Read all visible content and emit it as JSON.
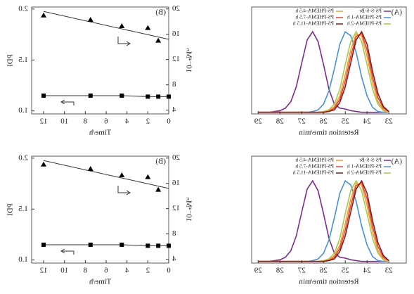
{
  "chart_data": [
    {
      "type": "line",
      "title": "(A)",
      "xlabel": "Retention time/min",
      "xlim": [
        22.2,
        29.3
      ],
      "xticks": [
        23,
        24,
        25,
        26,
        27,
        28,
        29
      ],
      "ylim": [
        0,
        1.3
      ],
      "x": [
        23,
        23.25,
        23.5,
        23.75,
        24,
        24.25,
        24.5,
        24.75,
        25,
        25.25,
        25.5,
        25.75,
        26,
        26.25,
        26.5,
        26.75,
        27,
        27.25,
        27.5,
        27.75,
        28,
        28.25,
        28.5,
        28.75,
        29
      ],
      "series": [
        {
          "name": "PS-S-S-Br",
          "color": "#7b2d8b",
          "values": [
            0.02,
            0.02,
            0.02,
            0.02,
            0.02,
            0.02,
            0.03,
            0.04,
            0.06,
            0.07,
            0.12,
            0.3,
            0.6,
            0.88,
            1.0,
            0.9,
            0.62,
            0.33,
            0.15,
            0.07,
            0.04,
            0.03,
            0.02,
            0.02,
            0.02
          ]
        },
        {
          "name": "PS-PHEMA-1 h",
          "color": "#4a90d9",
          "values": [
            0.02,
            0.02,
            0.03,
            0.08,
            0.22,
            0.45,
            0.75,
            0.95,
            1.0,
            0.85,
            0.55,
            0.28,
            0.12,
            0.05,
            0.03,
            0.02,
            0.02,
            0.02,
            0.02,
            0.02,
            0.02,
            0.02,
            0.02,
            0.02,
            0.02
          ]
        },
        {
          "name": "PS-PHEMA-2 h",
          "color": "#a8c84a",
          "values": [
            0.02,
            0.04,
            0.12,
            0.3,
            0.6,
            0.88,
            1.0,
            0.88,
            0.6,
            0.3,
            0.12,
            0.05,
            0.03,
            0.02,
            0.02,
            0.02,
            0.02,
            0.02,
            0.02,
            0.02,
            0.02,
            0.02,
            0.02,
            0.02,
            0.02
          ]
        },
        {
          "name": "PS-PHEMA-4.5 h",
          "color": "#f39c3c",
          "values": [
            0.02,
            0.05,
            0.15,
            0.38,
            0.7,
            0.95,
            0.97,
            0.78,
            0.48,
            0.22,
            0.09,
            0.04,
            0.02,
            0.02,
            0.02,
            0.02,
            0.02,
            0.02,
            0.02,
            0.02,
            0.02,
            0.02,
            0.02,
            0.02,
            0.02
          ]
        },
        {
          "name": "PS-PHEMA-7.5 h",
          "color": "#d94a3a",
          "values": [
            0.03,
            0.07,
            0.2,
            0.45,
            0.78,
            0.98,
            0.94,
            0.7,
            0.4,
            0.18,
            0.07,
            0.03,
            0.02,
            0.02,
            0.02,
            0.02,
            0.02,
            0.02,
            0.02,
            0.02,
            0.02,
            0.02,
            0.02,
            0.02,
            0.02
          ]
        },
        {
          "name": "PS-PHEMA-11.5 h",
          "color": "#8b1a1a",
          "values": [
            0.03,
            0.09,
            0.25,
            0.52,
            0.85,
            1.0,
            0.9,
            0.62,
            0.33,
            0.14,
            0.05,
            0.03,
            0.02,
            0.02,
            0.02,
            0.02,
            0.02,
            0.02,
            0.02,
            0.02,
            0.02,
            0.02,
            0.02,
            0.02,
            0.02
          ]
        }
      ]
    },
    {
      "type": "dual",
      "title": "(B)",
      "xlabel": "Time/h",
      "ylabel": "10⁻⁴Mₙ",
      "y2label": "PDI",
      "xlim": [
        0,
        13.15
      ],
      "xticks": [
        0,
        2,
        4,
        6,
        8,
        10,
        12
      ],
      "ylim": [
        3.4,
        20.3
      ],
      "yticks": [
        4,
        8,
        12,
        16,
        20
      ],
      "y2lim": [
        0.97,
        2.02
      ],
      "y2ticks": [
        {
          "value": 1,
          "label": "1.0"
        },
        1.5,
        {
          "value": 2,
          "label": "2.0"
        }
      ],
      "series": [
        {
          "marker": "triangle",
          "color": "#000000",
          "x": [
            12,
            7.5,
            4.5,
            2,
            1
          ],
          "values": [
            19,
            18.3,
            17.3,
            17,
            15
          ]
        },
        {
          "marker": "square",
          "axis": "y2",
          "color": "#000000",
          "x": [
            12,
            7.5,
            4.5,
            2,
            1,
            0
          ],
          "values": [
            1.15,
            1.15,
            1.15,
            1.14,
            1.14,
            1.14
          ]
        }
      ],
      "trend_line": {
        "x": [
          0,
          12
        ],
        "values": [
          15.2,
          19.6
        ]
      }
    },
    {
      "type": "line",
      "title": "(A)",
      "xlabel": "Retention time/min",
      "xlim": [
        22.2,
        29.3
      ],
      "xticks": [
        23,
        24,
        25,
        26,
        27,
        28,
        29
      ],
      "ylim": [
        0,
        1.3
      ],
      "x": [
        23,
        23.25,
        23.5,
        23.75,
        24,
        24.25,
        24.5,
        24.75,
        25,
        25.25,
        25.5,
        25.75,
        26,
        26.25,
        26.5,
        26.75,
        27,
        27.25,
        27.5,
        27.75,
        28,
        28.25,
        28.5,
        28.75,
        29
      ],
      "series": [
        {
          "name": "PS-S-S-Br",
          "color": "#7b2d8b",
          "values": [
            0.02,
            0.02,
            0.02,
            0.02,
            0.02,
            0.02,
            0.03,
            0.04,
            0.06,
            0.07,
            0.12,
            0.3,
            0.6,
            0.88,
            1.0,
            0.9,
            0.62,
            0.33,
            0.15,
            0.07,
            0.04,
            0.03,
            0.02,
            0.02,
            0.02
          ]
        },
        {
          "name": "PS-PHEMA-1 h",
          "color": "#4a90d9",
          "values": [
            0.02,
            0.02,
            0.03,
            0.08,
            0.22,
            0.45,
            0.75,
            0.95,
            1.0,
            0.85,
            0.55,
            0.28,
            0.12,
            0.05,
            0.03,
            0.02,
            0.02,
            0.02,
            0.02,
            0.02,
            0.02,
            0.02,
            0.02,
            0.02,
            0.02
          ]
        },
        {
          "name": "PS-PHEMA-2 h",
          "color": "#a8c84a",
          "values": [
            0.02,
            0.04,
            0.12,
            0.3,
            0.6,
            0.88,
            1.0,
            0.88,
            0.6,
            0.3,
            0.12,
            0.05,
            0.03,
            0.02,
            0.02,
            0.02,
            0.02,
            0.02,
            0.02,
            0.02,
            0.02,
            0.02,
            0.02,
            0.02,
            0.02
          ]
        },
        {
          "name": "PS-PHEMA-4.5 h",
          "color": "#f39c3c",
          "values": [
            0.02,
            0.05,
            0.15,
            0.38,
            0.7,
            0.95,
            0.97,
            0.78,
            0.48,
            0.22,
            0.09,
            0.04,
            0.02,
            0.02,
            0.02,
            0.02,
            0.02,
            0.02,
            0.02,
            0.02,
            0.02,
            0.02,
            0.02,
            0.02,
            0.02
          ]
        },
        {
          "name": "PS-PHEMA-7.5 h",
          "color": "#d94a3a",
          "values": [
            0.03,
            0.07,
            0.2,
            0.45,
            0.78,
            0.98,
            0.94,
            0.7,
            0.4,
            0.18,
            0.07,
            0.03,
            0.02,
            0.02,
            0.02,
            0.02,
            0.02,
            0.02,
            0.02,
            0.02,
            0.02,
            0.02,
            0.02,
            0.02,
            0.02
          ]
        },
        {
          "name": "PS-PHEMA-11.5 h",
          "color": "#8b1a1a",
          "values": [
            0.03,
            0.09,
            0.25,
            0.52,
            0.85,
            1.0,
            0.9,
            0.62,
            0.33,
            0.14,
            0.05,
            0.03,
            0.02,
            0.02,
            0.02,
            0.02,
            0.02,
            0.02,
            0.02,
            0.02,
            0.02,
            0.02,
            0.02,
            0.02,
            0.02
          ]
        }
      ]
    },
    {
      "type": "dual",
      "title": "(B)",
      "xlabel": "Time/h",
      "ylabel": "10⁻⁴Mₙ",
      "y2label": "PDI",
      "xlim": [
        0,
        13.15
      ],
      "xticks": [
        0,
        2,
        4,
        6,
        8,
        10,
        12
      ],
      "ylim": [
        3.4,
        20.3
      ],
      "yticks": [
        4,
        8,
        12,
        16,
        20
      ],
      "y2lim": [
        0.97,
        2.02
      ],
      "y2ticks": [
        {
          "value": 1,
          "label": "1.0"
        },
        1.5,
        {
          "value": 2,
          "label": "2.0"
        }
      ],
      "series": [
        {
          "marker": "triangle",
          "color": "#000000",
          "x": [
            12,
            7.5,
            4.5,
            2,
            1
          ],
          "values": [
            19,
            18.3,
            17.3,
            17,
            15
          ]
        },
        {
          "marker": "square",
          "axis": "y2",
          "color": "#000000",
          "x": [
            12,
            7.5,
            4.5,
            2,
            1,
            0
          ],
          "values": [
            1.15,
            1.15,
            1.15,
            1.14,
            1.14,
            1.14
          ]
        }
      ],
      "trend_line": {
        "x": [
          0,
          12
        ],
        "values": [
          15.2,
          19.6
        ]
      }
    }
  ]
}
